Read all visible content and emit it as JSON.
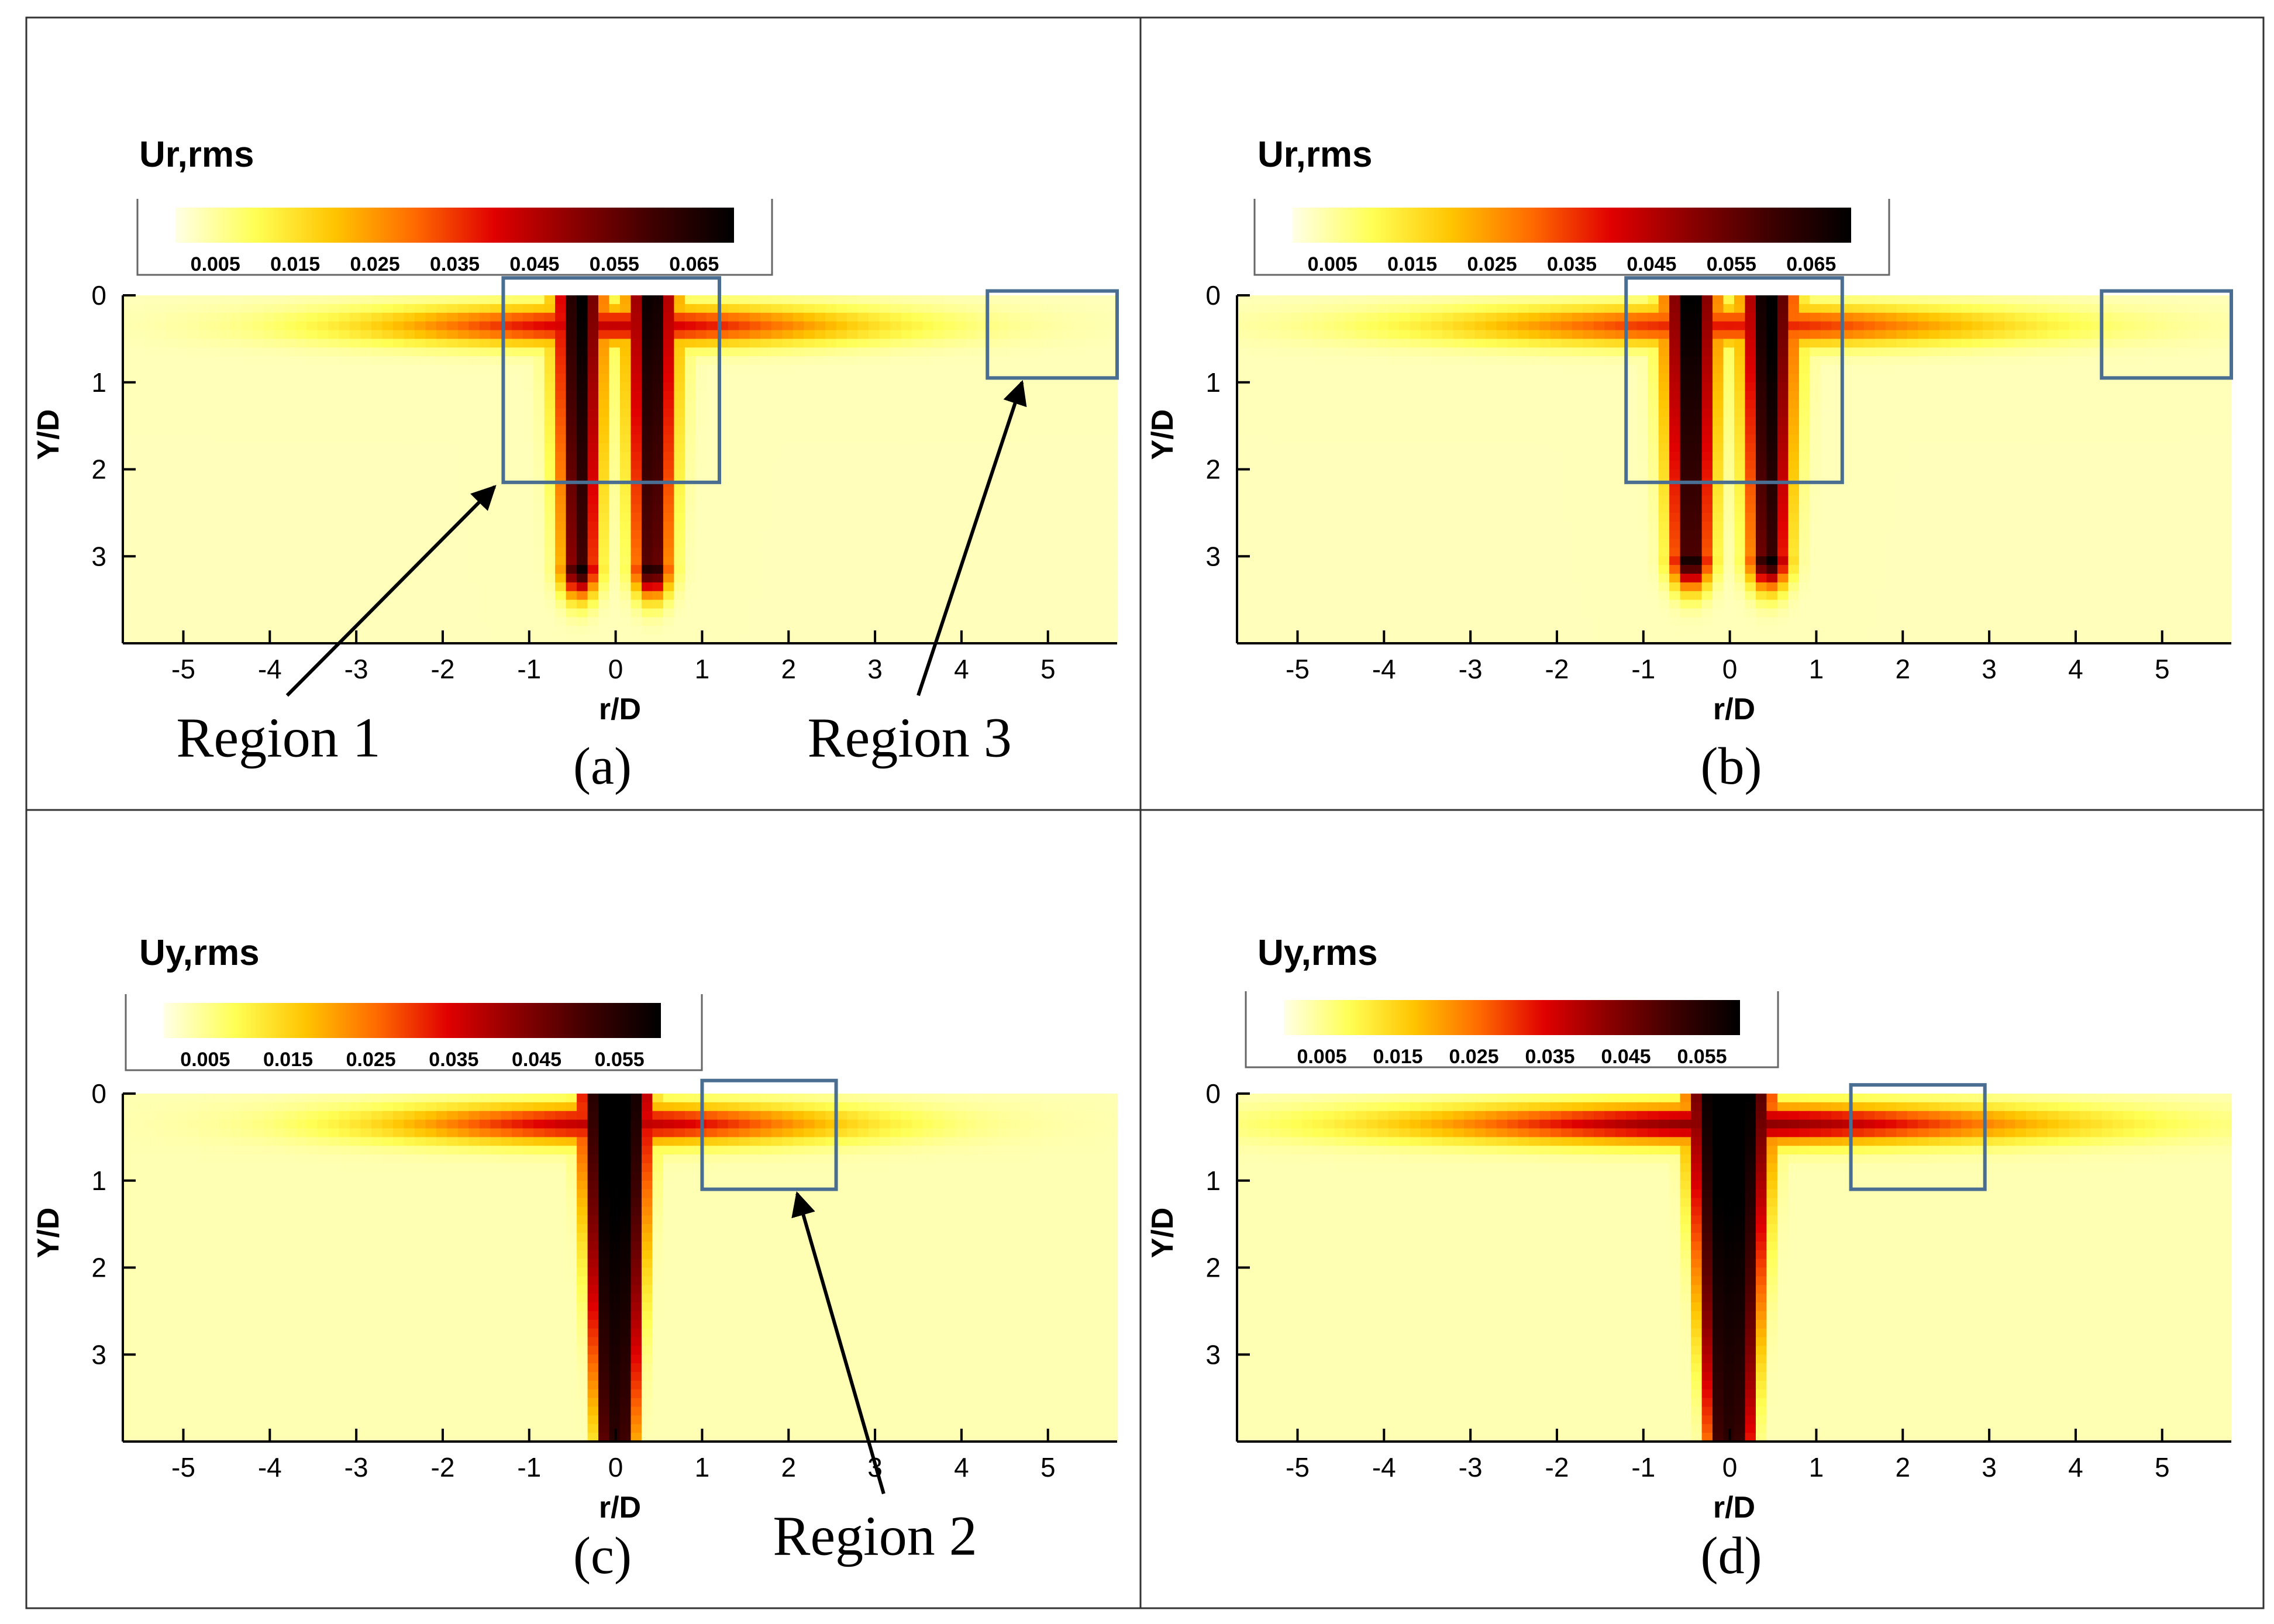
{
  "figure": {
    "kind": "grid-of-contour-plots"
  },
  "colors": {
    "region_box": "#4a6d92",
    "arrow": "#000000",
    "axis": "#000000",
    "grid_line": "#333333",
    "colormap": [
      "#ffffe6",
      "#ffff55",
      "#ffc400",
      "#ff6a00",
      "#e00000",
      "#8a0000",
      "#3d0000",
      "#000000"
    ]
  },
  "chart_data": [
    {
      "id": "a",
      "type": "heatmap",
      "caption": "(a)",
      "title": "Ur,rms",
      "xlabel": "r/D",
      "ylabel": "Y/D",
      "xlim": [
        -5.7,
        5.8
      ],
      "ylim": [
        0,
        4
      ],
      "y_inverted": true,
      "x_ticks": [
        "-5",
        "-4",
        "-3",
        "-2",
        "-1",
        "0",
        "1",
        "2",
        "3",
        "4",
        "5"
      ],
      "y_ticks": [
        "0",
        "1",
        "2",
        "3"
      ],
      "colorbar": {
        "min": 0.0,
        "max": 0.07,
        "labels": [
          "0.005",
          "0.015",
          "0.025",
          "0.035",
          "0.045",
          "0.055",
          "0.065"
        ]
      },
      "field": {
        "pattern": "twin",
        "core_x": 0.42,
        "core_half_width": 0.28,
        "core_depth": 3.1,
        "peak": 0.068,
        "shear_peak": 0.04,
        "shear_width": 2.8
      },
      "regions": [
        {
          "x0": -1.3,
          "x1": 1.2,
          "y0": -0.2,
          "y1": 2.15
        },
        {
          "x0": 4.3,
          "x1": 5.8,
          "y0": -0.05,
          "y1": 0.95
        }
      ],
      "annotations": [
        {
          "text": "Region 1",
          "text_x": -3.9,
          "text_y": 5.3,
          "arrow_from": [
            -3.8,
            4.6
          ],
          "arrow_to": [
            -1.4,
            2.2
          ]
        },
        {
          "text": "Region 3",
          "text_x": 3.4,
          "text_y": 5.3,
          "arrow_from": [
            3.5,
            4.6
          ],
          "arrow_to": [
            4.7,
            1.0
          ]
        }
      ]
    },
    {
      "id": "b",
      "type": "heatmap",
      "caption": "(b)",
      "title": "Ur,rms",
      "xlabel": "r/D",
      "ylabel": "Y/D",
      "xlim": [
        -5.7,
        5.8
      ],
      "ylim": [
        0,
        4
      ],
      "y_inverted": true,
      "x_ticks": [
        "-5",
        "-4",
        "-3",
        "-2",
        "-1",
        "0",
        "1",
        "2",
        "3",
        "4",
        "5"
      ],
      "y_ticks": [
        "0",
        "1",
        "2",
        "3"
      ],
      "colorbar": {
        "min": 0.0,
        "max": 0.07,
        "labels": [
          "0.005",
          "0.015",
          "0.025",
          "0.035",
          "0.045",
          "0.055",
          "0.065"
        ]
      },
      "field": {
        "pattern": "twin",
        "core_x": 0.45,
        "core_half_width": 0.3,
        "core_depth": 3.0,
        "peak": 0.07,
        "shear_peak": 0.035,
        "shear_width": 3.2
      },
      "regions": [
        {
          "x0": -1.2,
          "x1": 1.3,
          "y0": -0.2,
          "y1": 2.15
        },
        {
          "x0": 4.3,
          "x1": 5.8,
          "y0": -0.05,
          "y1": 0.95
        }
      ],
      "annotations": []
    },
    {
      "id": "c",
      "type": "heatmap",
      "caption": "(c)",
      "title": "Uy,rms",
      "xlabel": "r/D",
      "ylabel": "Y/D",
      "xlim": [
        -5.7,
        5.8
      ],
      "ylim": [
        0,
        4
      ],
      "y_inverted": true,
      "x_ticks": [
        "-5",
        "-4",
        "-3",
        "-2",
        "-1",
        "0",
        "1",
        "2",
        "3",
        "4",
        "5"
      ],
      "y_ticks": [
        "0",
        "1",
        "2",
        "3"
      ],
      "colorbar": {
        "min": 0.0,
        "max": 0.06,
        "labels": [
          "0.005",
          "0.015",
          "0.025",
          "0.035",
          "0.045",
          "0.055"
        ]
      },
      "field": {
        "pattern": "single",
        "core_x": 0.0,
        "core_half_width": 0.42,
        "core_depth": 4.0,
        "peak": 0.06,
        "shear_peak": 0.035,
        "shear_width": 2.6
      },
      "regions": [
        {
          "x0": 1.0,
          "x1": 2.55,
          "y0": -0.15,
          "y1": 1.1
        }
      ],
      "annotations": [
        {
          "text": "Region 2",
          "text_x": 3.0,
          "text_y": 5.3,
          "arrow_from": [
            3.1,
            4.6
          ],
          "arrow_to": [
            2.1,
            1.15
          ]
        }
      ]
    },
    {
      "id": "d",
      "type": "heatmap",
      "caption": "(d)",
      "title": "Uy,rms",
      "xlabel": "r/D",
      "ylabel": "Y/D",
      "xlim": [
        -5.7,
        5.8
      ],
      "ylim": [
        0,
        4
      ],
      "y_inverted": true,
      "x_ticks": [
        "-5",
        "-4",
        "-3",
        "-2",
        "-1",
        "0",
        "1",
        "2",
        "3",
        "4",
        "5"
      ],
      "y_ticks": [
        "0",
        "1",
        "2",
        "3"
      ],
      "colorbar": {
        "min": 0.0,
        "max": 0.06,
        "labels": [
          "0.005",
          "0.015",
          "0.025",
          "0.035",
          "0.045",
          "0.055"
        ]
      },
      "field": {
        "pattern": "single",
        "core_x": 0.0,
        "core_half_width": 0.5,
        "core_depth": 4.0,
        "peak": 0.06,
        "shear_peak": 0.04,
        "shear_width": 3.6
      },
      "regions": [
        {
          "x0": 1.4,
          "x1": 2.95,
          "y0": -0.1,
          "y1": 1.1
        }
      ],
      "annotations": []
    }
  ]
}
